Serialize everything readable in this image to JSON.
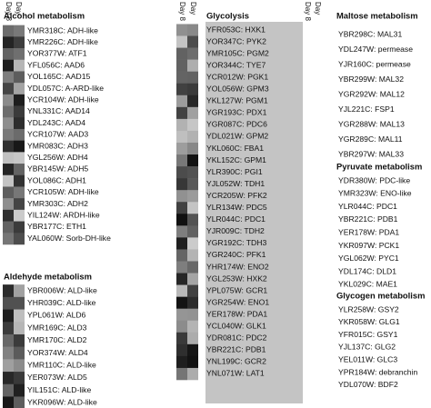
{
  "columns": [
    {
      "day_labels": [
        "Day 8",
        "Day"
      ],
      "sections": [
        {
          "title": "Alcohol metabolism",
          "genes": [
            "YMR318C: ADH-like",
            "YMR226C: ADH-like",
            "YOR377W: ATF1",
            "YFL056C: AAD6",
            "YOL165C: AAD15",
            "YDL057C: A-ARD-like",
            "YCR104W: ADH-like",
            "YNL331C: AAD14",
            "YDL243C: AAD4",
            "YCR107W: AAD3",
            "YMR083C: ADH3",
            "YGL256W: ADH4",
            "YBR145W: ADH5",
            "YOL086C: ADH1",
            "YCR105W: ADH-like",
            "YMR303C: ADH2",
            "YIL124W: ARDH-like",
            "YBR177C: ETH1",
            "YAL060W: Sorb-DH-like"
          ]
        },
        {
          "title": "Aldehyde metabolism",
          "genes": [
            "YBR006W: ALD-like",
            "YHR039C: ALD-like",
            "YPL061W: ALD6",
            "YMR169C: ALD3",
            "YMR170C: ALD2",
            "YOR374W: ALD4",
            "YMR110C: ALD-like",
            "YER073W: ALD5",
            "YIL151C: ALD-like",
            "YKR096W: ALD-like"
          ]
        }
      ]
    },
    {
      "day_labels": [
        "Day 8",
        "Day"
      ],
      "sections": [
        {
          "title": "Glycolysis",
          "genes": [
            "YFR053C: HXK1",
            "YOR347C: PYK2",
            "YMR105C: PGM2",
            "YOR344C: TYE7",
            "YCR012W: PGK1",
            "YOL056W: GPM3",
            "YKL127W: PGM1",
            "YGR193C: PDX1",
            "YGR087C: PDC6",
            "YDL021W: GPM2",
            "YKL060C: FBA1",
            "YKL152C: GPM1",
            "YLR390C: PGI1",
            "YJL052W: TDH1",
            "YCR205W: PFK2",
            "YLR134W: PDC5",
            "YLR044C: PDC1",
            "YJR009C: TDH2",
            "YGR192C: TDH3",
            "YGR240C: PFK1",
            "YHR174W: ENO2",
            "YGL253W: HXK2",
            "YPL075W: GCR1",
            "YGR254W: ENO1",
            "YER178W: PDA1",
            "YCL040W: GLK1",
            "YDR081C: PDC2",
            "YBR221C: PDB1",
            "YNL199C: GCR2",
            "YNL071W: LAT1"
          ]
        }
      ]
    },
    {
      "day_labels": [
        "Day 8",
        "Day"
      ],
      "sections": [
        {
          "title": "Maltose metabolism",
          "genes": [
            "YBR298C: MAL31",
            "YDL247W: permease",
            "YJR160C: permease",
            "YBR299W: MAL32",
            "YGR292W: MAL12",
            "YJL221C: FSP1",
            "YGR288W: MAL13",
            "YGR289C: MAL11",
            "YBR297W: MAL33"
          ]
        },
        {
          "title": "Pyruvate metabolism",
          "genes": [
            "YDR380W: PDC-like",
            "YMR323W: ENO-like",
            "YLR044C: PDC1",
            "YBR221C: PDB1",
            "YER178W: PDA1",
            "YKR097W: PCK1",
            "YGL062W: PYC1",
            "YDL174C: DLD1",
            "YKL029C: MAE1"
          ]
        },
        {
          "title": "Glycogen metabolism",
          "genes": [
            "YLR258W: GSY2",
            "YKR058W: GLG1",
            "YFR015C: GSY1",
            "YJL137C: GLG2",
            "YEL011W: GLC3",
            "YPR184W: debranchin",
            "YDL070W: BDF2"
          ]
        }
      ]
    }
  ]
}
